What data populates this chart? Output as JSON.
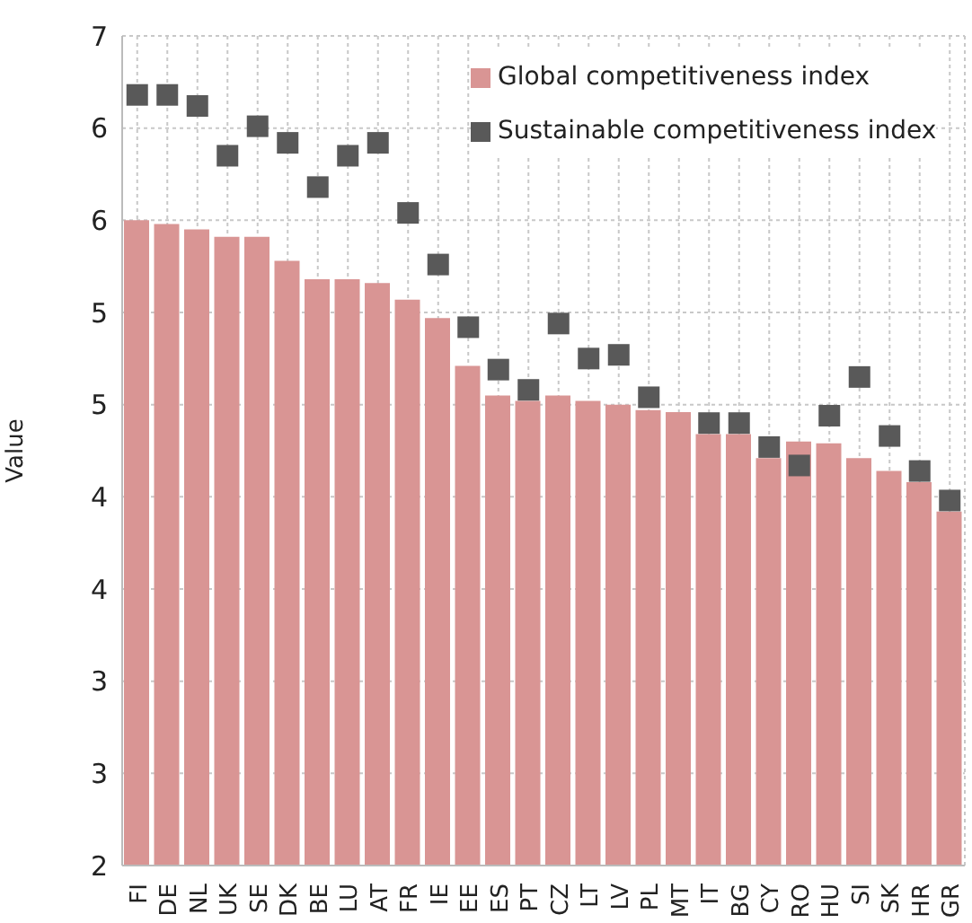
{
  "chart_data": {
    "type": "bar",
    "ylabel": "Value",
    "categories": [
      "FI",
      "DE",
      "NL",
      "UK",
      "SE",
      "DK",
      "BE",
      "LU",
      "AT",
      "FR",
      "IE",
      "EE",
      "ES",
      "PT",
      "CZ",
      "LT",
      "LV",
      "PL",
      "MT",
      "IT",
      "BG",
      "CY",
      "RO",
      "HU",
      "SI",
      "SK",
      "HR",
      "GR"
    ],
    "series": [
      {
        "name": "Global competitiveness index",
        "color": "#d99594",
        "values": [
          5.5,
          5.48,
          5.45,
          5.41,
          5.41,
          5.28,
          5.18,
          5.18,
          5.16,
          5.07,
          4.97,
          4.71,
          4.55,
          4.52,
          4.55,
          4.52,
          4.5,
          4.47,
          4.46,
          4.34,
          4.34,
          4.21,
          4.3,
          4.29,
          4.21,
          4.14,
          4.08,
          3.92
        ]
      },
      {
        "name": "Sustainable competitiveness index",
        "type": "scatter",
        "color": "#595959",
        "marker": "square",
        "values": [
          6.18,
          6.18,
          6.12,
          5.85,
          6.01,
          5.92,
          5.68,
          5.85,
          5.92,
          5.54,
          5.26,
          4.92,
          4.69,
          4.58,
          4.94,
          4.75,
          4.77,
          4.54,
          null,
          4.4,
          4.4,
          4.27,
          4.17,
          4.44,
          4.65,
          4.33,
          4.14,
          3.98
        ]
      }
    ],
    "ylim": [
      2,
      6.5
    ],
    "yticks": [
      {
        "value": 2,
        "label": "2"
      },
      {
        "value": 2.5,
        "label": "3"
      },
      {
        "value": 3,
        "label": "3"
      },
      {
        "value": 3.5,
        "label": "4"
      },
      {
        "value": 4,
        "label": "4"
      },
      {
        "value": 4.5,
        "label": "5"
      },
      {
        "value": 5,
        "label": "5"
      },
      {
        "value": 5.5,
        "label": "6"
      },
      {
        "value": 6,
        "label": "6"
      },
      {
        "value": 6.5,
        "label": "7"
      }
    ],
    "grid": true,
    "legend": "top right"
  }
}
